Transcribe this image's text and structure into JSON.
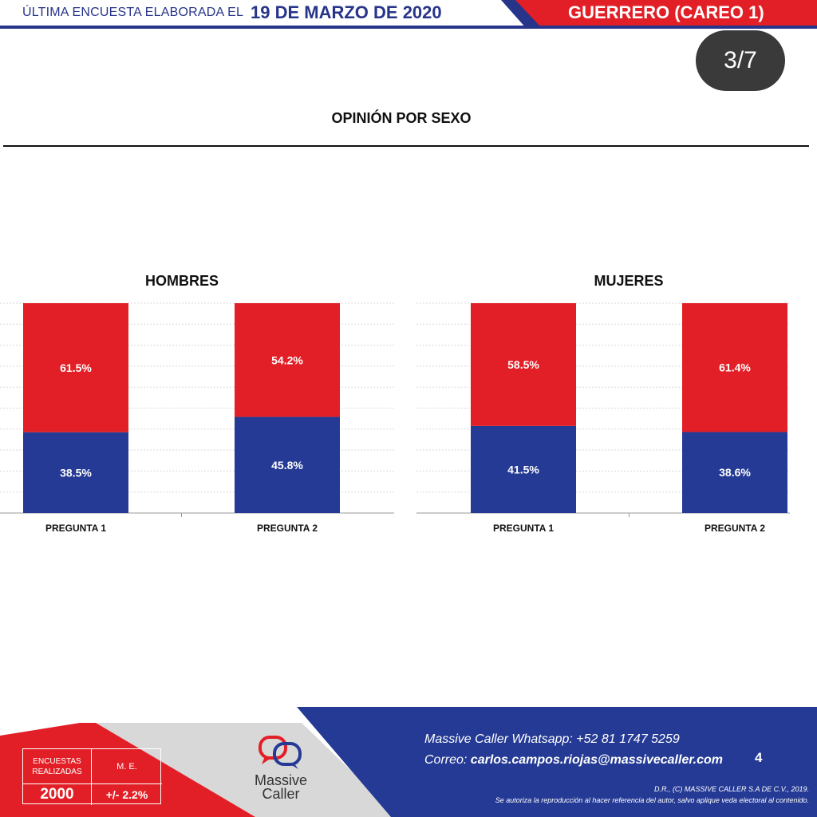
{
  "header": {
    "label": "ÚLTIMA ENCUESTA ELABORADA EL",
    "date": "19 DE MARZO DE 2020",
    "region": "GUERRERO (CAREO 1)"
  },
  "page_badge": "3/7",
  "main_title": "OPINIÓN POR SEXO",
  "colors": {
    "red": "#e21f26",
    "blue": "#253a94",
    "navy": "#26348a",
    "grid": "#d9d9d9"
  },
  "chart_data": [
    {
      "type": "bar",
      "stacked": true,
      "title": "HOMBRES",
      "categories": [
        "PREGUNTA 1",
        "PREGUNTA 2"
      ],
      "series": [
        {
          "color": "#253a94",
          "values": [
            38.5,
            45.8
          ],
          "labels": [
            "38.5%",
            "45.8%"
          ]
        },
        {
          "color": "#e21f26",
          "values": [
            61.5,
            54.2
          ],
          "labels": [
            "61.5%",
            "54.2%"
          ]
        }
      ],
      "ylim": [
        0,
        100
      ],
      "grid": true
    },
    {
      "type": "bar",
      "stacked": true,
      "title": "MUJERES",
      "categories": [
        "PREGUNTA 1",
        "PREGUNTA 2"
      ],
      "series": [
        {
          "color": "#253a94",
          "values": [
            41.5,
            38.6
          ],
          "labels": [
            "41.5%",
            "38.6%"
          ]
        },
        {
          "color": "#e21f26",
          "values": [
            58.5,
            61.4
          ],
          "labels": [
            "58.5%",
            "61.4%"
          ]
        }
      ],
      "ylim": [
        0,
        100
      ],
      "grid": true
    }
  ],
  "footer": {
    "encuestas_label_1": "ENCUESTAS",
    "encuestas_label_2": "REALIZADAS",
    "encuestas_value": "2000",
    "me_label": "M. E.",
    "me_value": "+/- 2.2%",
    "logo_word_1": "Massive",
    "logo_word_2": "Caller",
    "whatsapp_line": "Massive Caller Whatsapp:  +52 81 1747 5259",
    "email_prefix": "Correo: ",
    "email": "carlos.campos.riojas@massivecaller.com",
    "slide_number": "4",
    "legal_1": "D.R., (C) MASSIVE CALLER S.A DE C.V., 2019.",
    "legal_2": "Se autoriza la reproducción al hacer referencia del autor, salvo aplique veda electoral al contenido."
  }
}
